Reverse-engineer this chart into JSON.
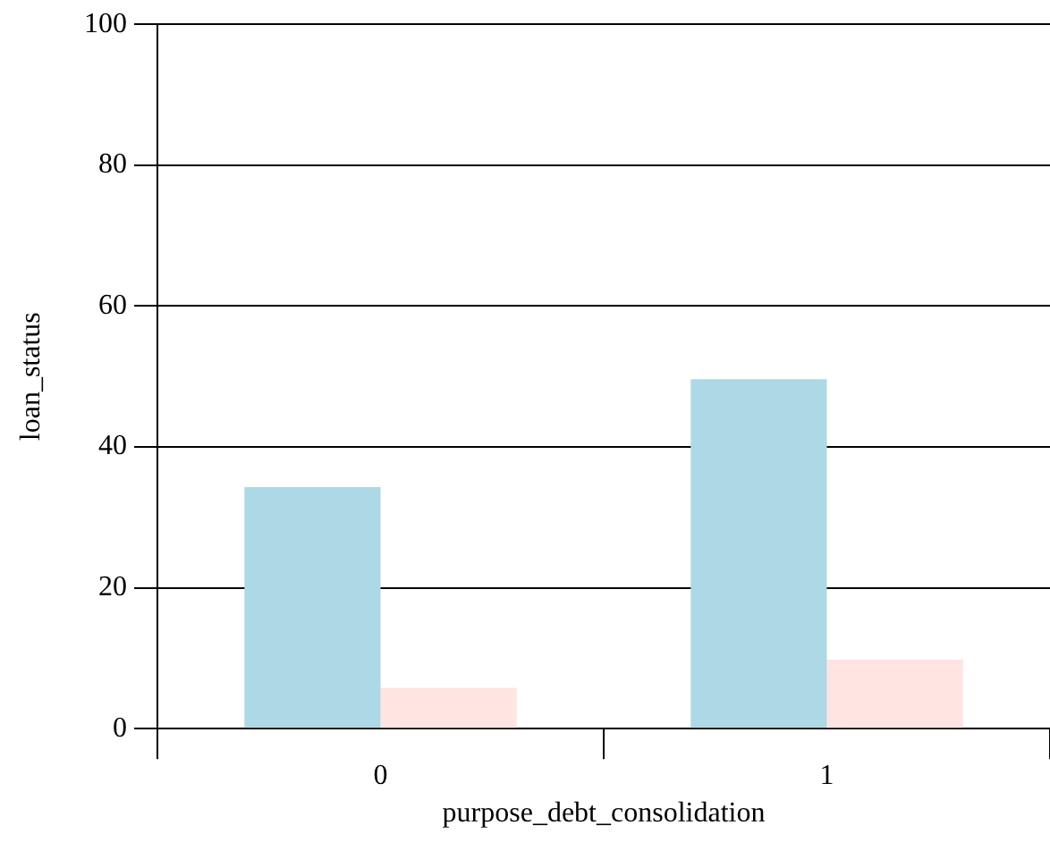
{
  "chart_data": {
    "type": "bar",
    "xlabel": "purpose_debt_consolidation",
    "ylabel": "loan_status",
    "categories": [
      "0",
      "1"
    ],
    "series": [
      {
        "color": "#add8e6",
        "values": [
          34.3,
          49.6
        ]
      },
      {
        "color": "#ffe4e1",
        "values": [
          5.8,
          9.8
        ]
      }
    ],
    "ylim": [
      0,
      100
    ],
    "yticks": [
      0,
      20,
      40,
      60,
      80,
      100
    ],
    "grid": "y",
    "legend": false
  }
}
